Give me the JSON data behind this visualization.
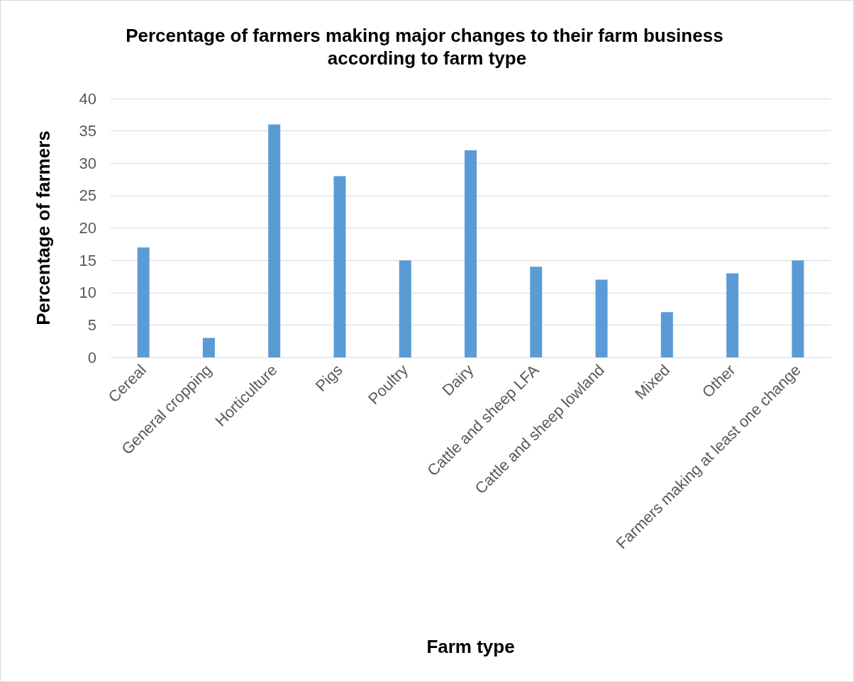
{
  "chart_data": {
    "type": "bar",
    "title": "Percentage of farmers making major changes to their farm business according to farm type",
    "xlabel": "Farm type",
    "ylabel": "Percentage of farmers",
    "categories": [
      "Cereal",
      "General cropping",
      "Horticulture",
      "Pigs",
      "Poultry",
      "Dairy",
      "Cattle and sheep LFA",
      "Cattle and sheep lowland",
      "Mixed",
      "Other",
      "Farmers making at least one change"
    ],
    "values": [
      17,
      3,
      36,
      28,
      15,
      32,
      14,
      12,
      7,
      13,
      15
    ],
    "color": "#5b9bd5",
    "ylim": [
      0,
      40
    ],
    "yticks": [
      0,
      5,
      10,
      15,
      20,
      25,
      30,
      35,
      40
    ],
    "grid": "y"
  }
}
